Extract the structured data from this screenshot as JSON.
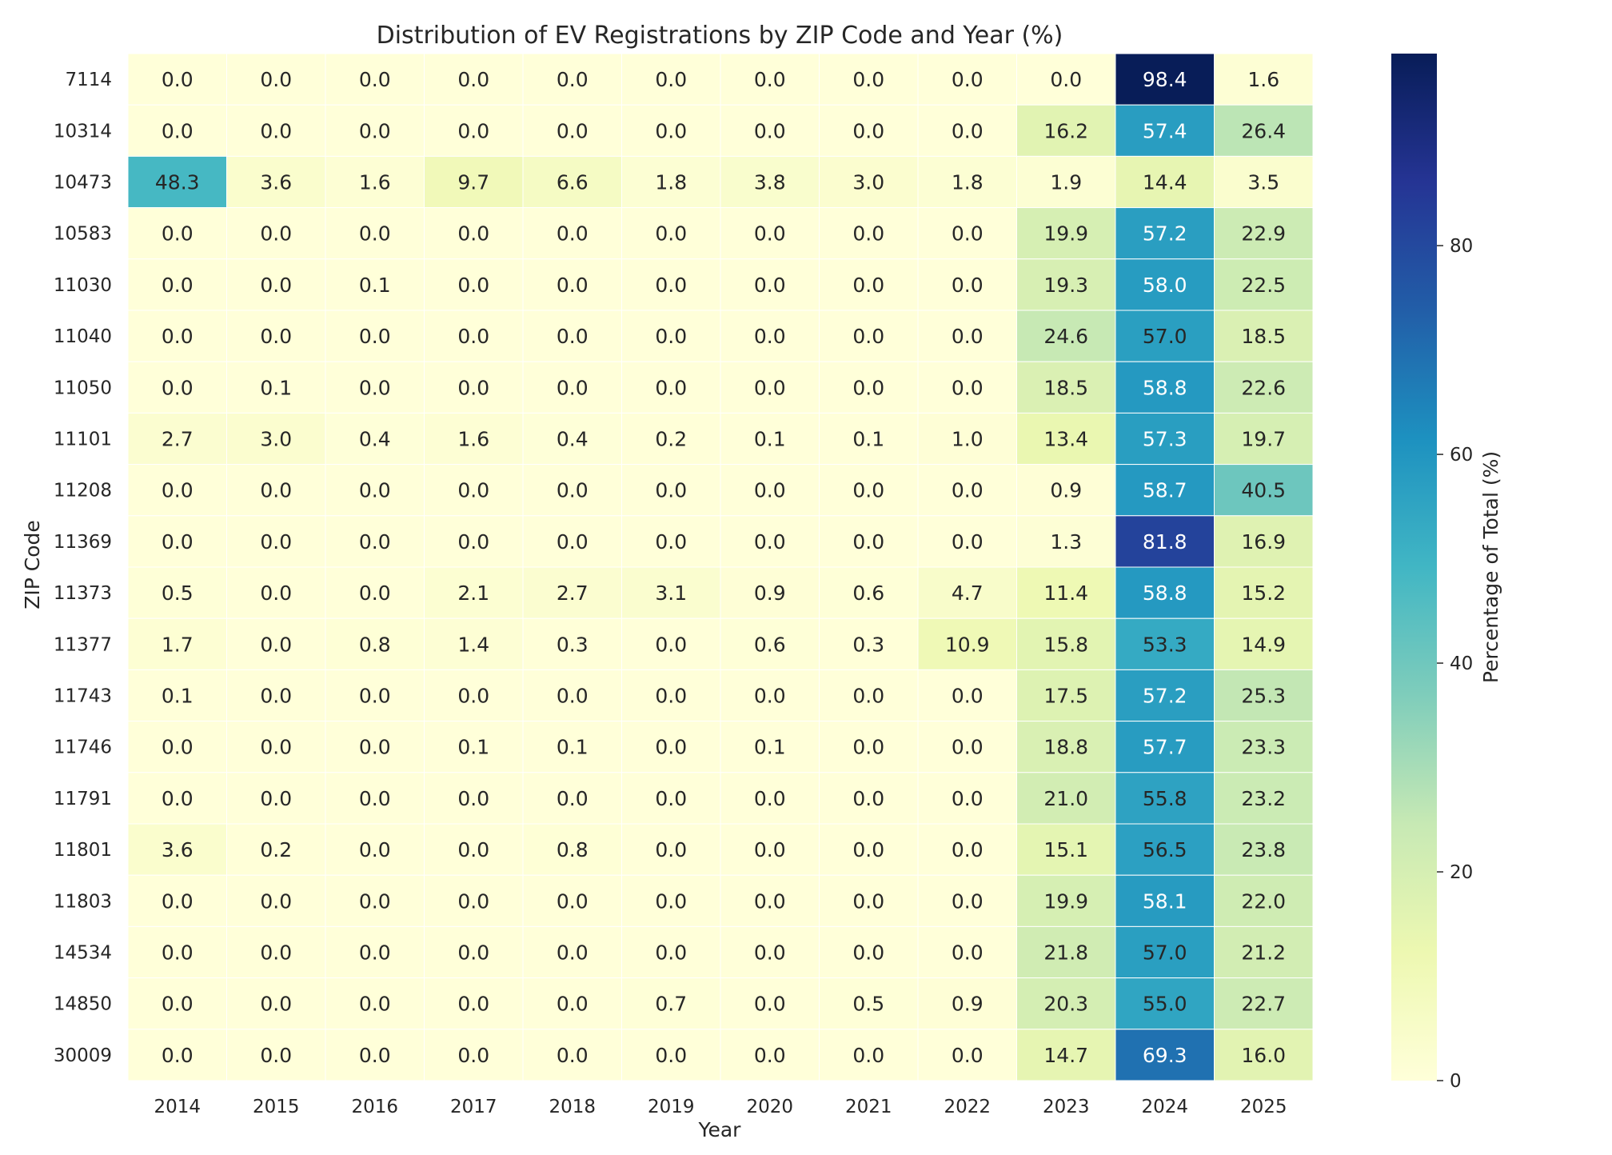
{
  "chart_data": {
    "type": "heatmap",
    "title": "Distribution of EV Registrations by ZIP Code and Year (%)",
    "xlabel": "Year",
    "ylabel": "ZIP Code",
    "x": [
      "2014",
      "2015",
      "2016",
      "2017",
      "2018",
      "2019",
      "2020",
      "2021",
      "2022",
      "2023",
      "2024",
      "2025"
    ],
    "y": [
      "7114",
      "10314",
      "10473",
      "10583",
      "11030",
      "11040",
      "11050",
      "11101",
      "11208",
      "11369",
      "11373",
      "11377",
      "11743",
      "11746",
      "11791",
      "11801",
      "11803",
      "14534",
      "14850",
      "30009"
    ],
    "values": [
      [
        0.0,
        0.0,
        0.0,
        0.0,
        0.0,
        0.0,
        0.0,
        0.0,
        0.0,
        0.0,
        98.4,
        1.6
      ],
      [
        0.0,
        0.0,
        0.0,
        0.0,
        0.0,
        0.0,
        0.0,
        0.0,
        0.0,
        16.2,
        57.4,
        26.4
      ],
      [
        48.3,
        3.6,
        1.6,
        9.7,
        6.6,
        1.8,
        3.8,
        3.0,
        1.8,
        1.9,
        14.4,
        3.5
      ],
      [
        0.0,
        0.0,
        0.0,
        0.0,
        0.0,
        0.0,
        0.0,
        0.0,
        0.0,
        19.9,
        57.2,
        22.9
      ],
      [
        0.0,
        0.0,
        0.1,
        0.0,
        0.0,
        0.0,
        0.0,
        0.0,
        0.0,
        19.3,
        58.0,
        22.5
      ],
      [
        0.0,
        0.0,
        0.0,
        0.0,
        0.0,
        0.0,
        0.0,
        0.0,
        0.0,
        24.6,
        57.0,
        18.5
      ],
      [
        0.0,
        0.1,
        0.0,
        0.0,
        0.0,
        0.0,
        0.0,
        0.0,
        0.0,
        18.5,
        58.8,
        22.6
      ],
      [
        2.7,
        3.0,
        0.4,
        1.6,
        0.4,
        0.2,
        0.1,
        0.1,
        1.0,
        13.4,
        57.3,
        19.7
      ],
      [
        0.0,
        0.0,
        0.0,
        0.0,
        0.0,
        0.0,
        0.0,
        0.0,
        0.0,
        0.9,
        58.7,
        40.5
      ],
      [
        0.0,
        0.0,
        0.0,
        0.0,
        0.0,
        0.0,
        0.0,
        0.0,
        0.0,
        1.3,
        81.8,
        16.9
      ],
      [
        0.5,
        0.0,
        0.0,
        2.1,
        2.7,
        3.1,
        0.9,
        0.6,
        4.7,
        11.4,
        58.8,
        15.2
      ],
      [
        1.7,
        0.0,
        0.8,
        1.4,
        0.3,
        0.0,
        0.6,
        0.3,
        10.9,
        15.8,
        53.3,
        14.9
      ],
      [
        0.1,
        0.0,
        0.0,
        0.0,
        0.0,
        0.0,
        0.0,
        0.0,
        0.0,
        17.5,
        57.2,
        25.3
      ],
      [
        0.0,
        0.0,
        0.0,
        0.1,
        0.1,
        0.0,
        0.1,
        0.0,
        0.0,
        18.8,
        57.7,
        23.3
      ],
      [
        0.0,
        0.0,
        0.0,
        0.0,
        0.0,
        0.0,
        0.0,
        0.0,
        0.0,
        21.0,
        55.8,
        23.2
      ],
      [
        3.6,
        0.2,
        0.0,
        0.0,
        0.8,
        0.0,
        0.0,
        0.0,
        0.0,
        15.1,
        56.5,
        23.8
      ],
      [
        0.0,
        0.0,
        0.0,
        0.0,
        0.0,
        0.0,
        0.0,
        0.0,
        0.0,
        19.9,
        58.1,
        22.0
      ],
      [
        0.0,
        0.0,
        0.0,
        0.0,
        0.0,
        0.0,
        0.0,
        0.0,
        0.0,
        21.8,
        57.0,
        21.2
      ],
      [
        0.0,
        0.0,
        0.0,
        0.0,
        0.0,
        0.7,
        0.0,
        0.5,
        0.9,
        20.3,
        55.0,
        22.7
      ],
      [
        0.0,
        0.0,
        0.0,
        0.0,
        0.0,
        0.0,
        0.0,
        0.0,
        0.0,
        14.7,
        69.3,
        16.0
      ]
    ],
    "colorbar": {
      "label": "Percentage of Total (%)",
      "ticks": [
        0,
        20,
        40,
        60,
        80
      ],
      "range": [
        0,
        98.4
      ],
      "colormap": "YlGnBu"
    },
    "grid": false
  }
}
